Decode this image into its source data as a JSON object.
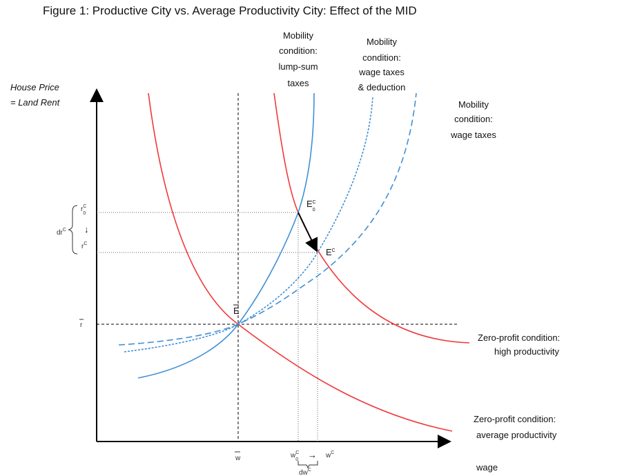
{
  "title": "Figure 1: Productive City vs. Average Productivity City: Effect of the MID",
  "axes": {
    "y_label": [
      "House Price",
      "= Land Rent"
    ],
    "x_label": "wage"
  },
  "curves": [
    {
      "label": [
        "Mobility",
        "condition:",
        "lump-sum",
        "taxes"
      ]
    },
    {
      "label": [
        "Mobility",
        "condition:",
        "wage taxes",
        "& deduction"
      ]
    },
    {
      "label": [
        "Mobility",
        "condition:",
        "wage taxes"
      ]
    },
    {
      "label": [
        "Zero-profit condition:",
        "high productivity"
      ]
    },
    {
      "label": [
        "Zero-profit condition:",
        "average productivity"
      ]
    }
  ],
  "points": {
    "e_bar": "E",
    "e0": {
      "base": "E",
      "sup": "C",
      "sub": "0"
    },
    "e1": {
      "base": "E",
      "sup": "C"
    }
  },
  "y_ticks": {
    "r_bar": "r",
    "r0": {
      "base": "r",
      "sup": "C",
      "sub": "0"
    },
    "r1": {
      "base": "r",
      "sup": "C"
    },
    "dr": {
      "base": "dr",
      "sup": "C"
    },
    "arrow": "↓"
  },
  "x_ticks": {
    "w_bar": "w",
    "w0": {
      "base": "w",
      "sup": "C",
      "sub": "0"
    },
    "w1": {
      "base": "w",
      "sup": "C"
    },
    "dw": {
      "base": "dw",
      "sup": "C"
    },
    "arrow": "→"
  }
}
